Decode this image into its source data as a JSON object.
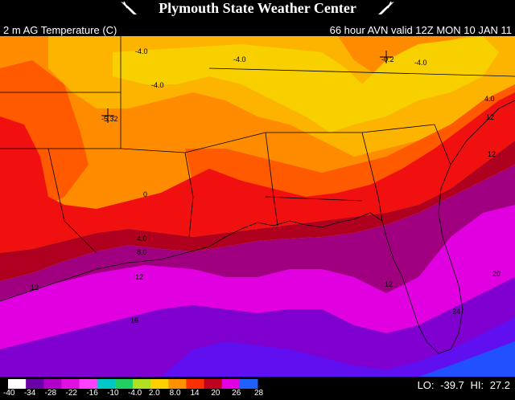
{
  "header": {
    "site_title": "Plymouth State Weather Center"
  },
  "subheader": {
    "field_label": "2 m AG Temperature (C)",
    "valid_label": "66 hour AVN valid 12Z MON 10 JAN 11"
  },
  "map": {
    "contour_labels": [
      "-4.0",
      "-4.0",
      "-4.0",
      "-4.0",
      "-0.2",
      "-5.32",
      "4.0",
      "0",
      "4.0",
      "8.0",
      "12",
      "16",
      "12",
      "12",
      "20",
      "24",
      "12",
      "12"
    ]
  },
  "colorbar": {
    "ticks": [
      "-40",
      "-34",
      "-28",
      "-22",
      "-16",
      "-10",
      "-4.0",
      "2.0",
      "8.0",
      "14",
      "20",
      "26",
      "28"
    ],
    "colors": [
      "#ffffff",
      "#6a00a8",
      "#b000c8",
      "#e010e0",
      "#ff40ff",
      "#00c8c8",
      "#20d060",
      "#b0e020",
      "#ffd000",
      "#ff9000",
      "#ff3000",
      "#c00020",
      "#e000e0",
      "#2060ff"
    ],
    "lo_label": "LO:",
    "lo_value": "-39.7",
    "hi_label": "HI:",
    "hi_value": "27.2"
  },
  "palette": {
    "yellow": "#f8d000",
    "orange_light": "#fdb400",
    "orange": "#ff8c00",
    "orange_red": "#ff5a00",
    "red": "#f01010",
    "dark_red": "#b00020",
    "purple_dark": "#a00080",
    "magenta": "#e000e0",
    "violet": "#8000d0",
    "blue_violet": "#6010f0",
    "blue": "#2050ff"
  }
}
